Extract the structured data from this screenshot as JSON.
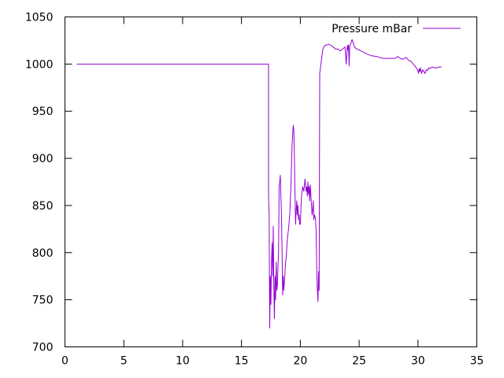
{
  "chart_data": {
    "type": "line",
    "title": "",
    "xlabel": "",
    "ylabel": "",
    "xlim": [
      0,
      35
    ],
    "ylim": [
      700,
      1050
    ],
    "xticks": [
      0,
      5,
      10,
      15,
      20,
      25,
      30,
      35
    ],
    "yticks": [
      700,
      750,
      800,
      850,
      900,
      950,
      1000,
      1050
    ],
    "grid": false,
    "legend": "top-right",
    "series": [
      {
        "name": "Pressure mBar",
        "color": "#9400d3",
        "x": [
          1,
          17.3,
          17.3,
          17.35,
          17.4,
          17.45,
          17.5,
          17.55,
          17.6,
          17.65,
          17.7,
          17.75,
          17.8,
          17.85,
          17.9,
          17.95,
          18.0,
          18.05,
          18.1,
          18.15,
          18.2,
          18.25,
          18.3,
          18.35,
          18.4,
          18.45,
          18.5,
          18.55,
          18.6,
          18.65,
          18.7,
          18.75,
          18.8,
          18.9,
          19.0,
          19.1,
          19.2,
          19.3,
          19.4,
          19.45,
          19.5,
          19.55,
          19.6,
          19.65,
          19.7,
          19.75,
          19.8,
          19.85,
          19.9,
          19.95,
          20.0,
          20.1,
          20.2,
          20.3,
          20.4,
          20.5,
          20.55,
          20.6,
          20.65,
          20.7,
          20.75,
          20.8,
          20.85,
          20.9,
          20.95,
          21.0,
          21.05,
          21.1,
          21.15,
          21.2,
          21.25,
          21.3,
          21.35,
          21.4,
          21.45,
          21.5,
          21.55,
          21.6,
          21.65,
          21.7,
          21.75,
          21.8,
          21.85,
          21.9,
          22.0,
          22.1,
          22.2,
          22.4,
          22.6,
          22.8,
          23.0,
          23.2,
          23.4,
          23.6,
          23.8,
          23.9,
          24.0,
          24.05,
          24.1,
          24.15,
          24.2,
          24.3,
          24.4,
          24.45,
          24.5,
          24.6,
          24.8,
          25.0,
          25.3,
          25.6,
          26.0,
          26.5,
          27.0,
          27.5,
          28.0,
          28.3,
          28.5,
          28.7,
          29.0,
          29.2,
          29.4,
          29.6,
          29.8,
          29.9,
          30.0,
          30.05,
          30.1,
          30.15,
          30.2,
          30.3,
          30.4,
          30.5,
          30.6,
          30.7,
          30.8,
          30.9,
          31.0,
          31.2,
          31.4,
          31.6,
          31.8,
          32.0
        ],
        "y": [
          1000,
          1000,
          860,
          840,
          720,
          775,
          745,
          790,
          810,
          775,
          828,
          760,
          730,
          775,
          750,
          790,
          760,
          765,
          785,
          800,
          870,
          875,
          882,
          860,
          840,
          800,
          755,
          775,
          760,
          770,
          780,
          790,
          795,
          815,
          825,
          840,
          870,
          915,
          935,
          930,
          900,
          860,
          830,
          845,
          855,
          840,
          850,
          835,
          840,
          830,
          830,
          860,
          870,
          865,
          878,
          865,
          870,
          860,
          875,
          862,
          870,
          855,
          872,
          860,
          850,
          840,
          845,
          855,
          835,
          840,
          838,
          835,
          820,
          780,
          760,
          748,
          780,
          760,
          990,
          995,
          1000,
          1005,
          1010,
          1015,
          1018,
          1020,
          1020,
          1021,
          1020,
          1018,
          1016,
          1016,
          1014,
          1016,
          1018,
          1000,
          1020,
          1015,
          1020,
          998,
          1020,
          1022,
          1026,
          1025,
          1022,
          1018,
          1016,
          1015,
          1013,
          1011,
          1009,
          1008,
          1006,
          1006,
          1006,
          1008,
          1006,
          1005,
          1007,
          1004,
          1003,
          1000,
          997,
          995,
          993,
          990,
          995,
          992,
          996,
          990,
          994,
          992,
          990,
          994,
          993,
          996,
          995,
          997,
          996,
          996,
          997,
          997
        ]
      }
    ]
  }
}
